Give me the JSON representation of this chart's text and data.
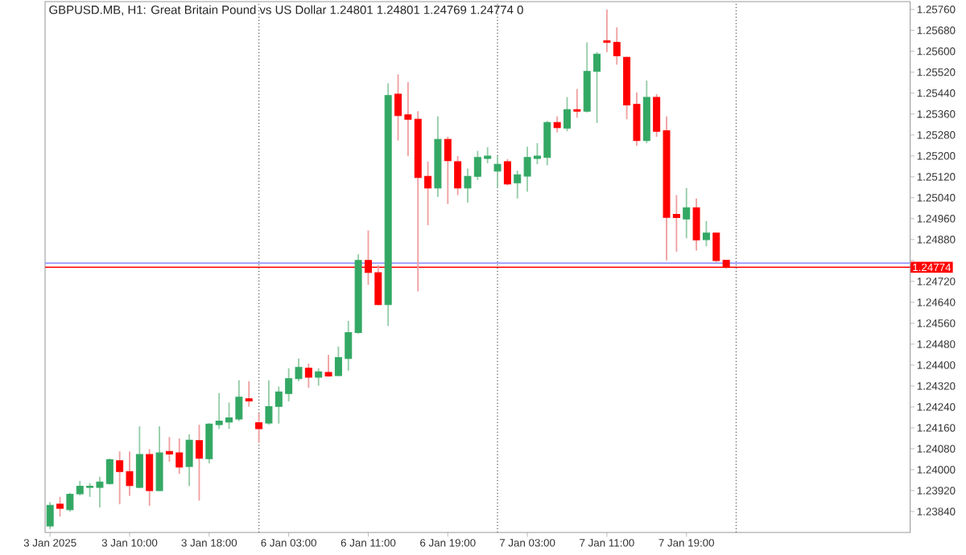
{
  "chart_data": {
    "type": "candlestick",
    "title": "GBPUSD.MB, H1: Great Britain Pound vs US Dollar 1.24801 1.24801 1.24769 1.24774 0",
    "categories": [
      "3 Jan 2025",
      null,
      null,
      null,
      null,
      null,
      null,
      null,
      "3 Jan 10:00",
      null,
      null,
      null,
      null,
      null,
      null,
      null,
      "3 Jan 18:00",
      null,
      null,
      null,
      null,
      null,
      null,
      null,
      "6 Jan 03:00",
      null,
      null,
      null,
      null,
      null,
      null,
      null,
      "6 Jan 11:00",
      null,
      null,
      null,
      null,
      null,
      null,
      null,
      "6 Jan 19:00",
      null,
      null,
      null,
      null,
      null,
      null,
      null,
      "7 Jan 03:00",
      null,
      null,
      null,
      null,
      null,
      null,
      null,
      "7 Jan 11:00",
      null,
      null,
      null,
      null,
      null,
      null,
      null,
      "7 Jan 19:00",
      null,
      null,
      null,
      null,
      null,
      null,
      null,
      null,
      null,
      null,
      null,
      null,
      null,
      null,
      null,
      null,
      null,
      null,
      null,
      null,
      null,
      null
    ],
    "ohlc": [
      [
        1.23785,
        1.23876,
        1.23773,
        1.23864
      ],
      [
        1.23868,
        1.23896,
        1.23821,
        1.23852
      ],
      [
        1.23847,
        1.23912,
        1.2384,
        1.23906
      ],
      [
        1.23908,
        1.23957,
        1.23902,
        1.23937
      ],
      [
        1.23932,
        1.23949,
        1.23896,
        1.23937
      ],
      [
        1.23932,
        1.23973,
        1.23856,
        1.23953
      ],
      [
        1.23947,
        1.24043,
        1.23943,
        1.24038
      ],
      [
        1.24034,
        1.2407,
        1.23868,
        1.23993
      ],
      [
        1.23993,
        1.2407,
        1.239,
        1.23939
      ],
      [
        1.23932,
        1.24166,
        1.23929,
        1.24058
      ],
      [
        1.24058,
        1.24078,
        1.23862,
        1.2392
      ],
      [
        1.2392,
        1.24166,
        1.23919,
        1.24064
      ],
      [
        1.2407,
        1.24125,
        1.2403,
        1.2406
      ],
      [
        1.24064,
        1.24119,
        1.23984,
        1.2401
      ],
      [
        1.24012,
        1.24135,
        1.23937,
        1.24113
      ],
      [
        1.24111,
        1.24172,
        1.23882,
        1.24044
      ],
      [
        1.24042,
        1.24178,
        1.24024,
        1.24174
      ],
      [
        1.24172,
        1.24293,
        1.24156,
        1.24186
      ],
      [
        1.24182,
        1.24257,
        1.24156,
        1.24198
      ],
      [
        1.24194,
        1.24342,
        1.24186,
        1.24277
      ],
      [
        1.24271,
        1.24338,
        1.24241,
        1.24263
      ],
      [
        1.2418,
        1.24216,
        1.24103,
        1.24157
      ],
      [
        1.24178,
        1.24342,
        1.24172,
        1.24241
      ],
      [
        1.24242,
        1.24318,
        1.24176,
        1.24297
      ],
      [
        1.24291,
        1.24388,
        1.24261,
        1.24348
      ],
      [
        1.24348,
        1.24425,
        1.24338,
        1.24391
      ],
      [
        1.24388,
        1.24406,
        1.24313,
        1.24354
      ],
      [
        1.24354,
        1.24388,
        1.24321,
        1.24374
      ],
      [
        1.24372,
        1.24439,
        1.24356,
        1.24358
      ],
      [
        1.2436,
        1.24471,
        1.24358,
        1.24429
      ],
      [
        1.24425,
        1.24569,
        1.24379,
        1.24524
      ],
      [
        1.24524,
        1.24824,
        1.2452,
        1.248
      ],
      [
        1.248,
        1.24915,
        1.24707,
        1.24754
      ],
      [
        1.24753,
        1.24783,
        1.24629,
        1.24631
      ],
      [
        1.24631,
        1.25478,
        1.2455,
        1.25431
      ],
      [
        1.25436,
        1.25512,
        1.25259,
        1.25354
      ],
      [
        1.25357,
        1.25482,
        1.25199,
        1.2534
      ],
      [
        1.2534,
        1.25371,
        1.24682,
        1.25117
      ],
      [
        1.25122,
        1.25178,
        1.24935,
        1.25077
      ],
      [
        1.25077,
        1.25351,
        1.25043,
        1.25263
      ],
      [
        1.25263,
        1.25273,
        1.25016,
        1.25182
      ],
      [
        1.25178,
        1.25199,
        1.2505,
        1.25077
      ],
      [
        1.25077,
        1.25152,
        1.25022,
        1.25122
      ],
      [
        1.25122,
        1.25219,
        1.25108,
        1.25194
      ],
      [
        1.2519,
        1.25233,
        1.25172,
        1.25199
      ],
      [
        1.25142,
        1.25199,
        1.25077,
        1.25168
      ],
      [
        1.25178,
        1.25188,
        1.25087,
        1.25093
      ],
      [
        1.25097,
        1.25144,
        1.25037,
        1.25128
      ],
      [
        1.25123,
        1.25235,
        1.25063,
        1.25194
      ],
      [
        1.2519,
        1.25249,
        1.25168,
        1.25199
      ],
      [
        1.25194,
        1.25334,
        1.25164,
        1.25328
      ],
      [
        1.25328,
        1.25351,
        1.2529,
        1.25308
      ],
      [
        1.25306,
        1.25425,
        1.25294,
        1.25377
      ],
      [
        1.25377,
        1.25456,
        1.25346,
        1.25371
      ],
      [
        1.25371,
        1.25634,
        1.25366,
        1.25523
      ],
      [
        1.25523,
        1.25597,
        1.25326,
        1.25589
      ],
      [
        1.2564,
        1.2576,
        1.25597,
        1.25634
      ],
      [
        1.25634,
        1.25691,
        1.25549,
        1.25583
      ],
      [
        1.25577,
        1.2558,
        1.2534,
        1.25395
      ],
      [
        1.25397,
        1.25442,
        1.25239,
        1.25259
      ],
      [
        1.25259,
        1.25488,
        1.25249,
        1.25424
      ],
      [
        1.25424,
        1.25436,
        1.25273,
        1.25294
      ],
      [
        1.25296,
        1.25351,
        1.248,
        1.24965
      ],
      [
        1.24976,
        1.2505,
        1.24834,
        1.24964
      ],
      [
        1.24959,
        1.25077,
        1.24885,
        1.25002
      ],
      [
        1.25002,
        1.25037,
        1.24838,
        1.24879
      ],
      [
        1.2488,
        1.24951,
        1.24854,
        1.24905
      ],
      [
        1.24905,
        1.24905,
        1.24794,
        1.248
      ],
      [
        1.24801,
        1.24801,
        1.24769,
        1.24774
      ],
      null,
      null,
      null,
      null,
      null,
      null,
      null,
      null,
      null,
      null,
      null,
      null,
      null,
      null,
      null,
      null,
      null,
      null
    ],
    "ylim": [
      1.2376,
      1.2579
    ],
    "grid": "x",
    "yticks": [
      {
        "value": 1.2384,
        "label": "1.23840"
      },
      {
        "value": 1.2392,
        "label": "1.23920"
      },
      {
        "value": 1.24,
        "label": "1.24000"
      },
      {
        "value": 1.2408,
        "label": "1.24080"
      },
      {
        "value": 1.2416,
        "label": "1.24160"
      },
      {
        "value": 1.2424,
        "label": "1.24240"
      },
      {
        "value": 1.2432,
        "label": "1.24320"
      },
      {
        "value": 1.244,
        "label": "1.24400"
      },
      {
        "value": 1.2448,
        "label": "1.24480"
      },
      {
        "value": 1.2456,
        "label": "1.24560"
      },
      {
        "value": 1.2464,
        "label": "1.24640"
      },
      {
        "value": 1.2472,
        "label": "1.24720"
      },
      {
        "value": 1.248,
        "label": null
      },
      {
        "value": 1.2488,
        "label": "1.24880"
      },
      {
        "value": 1.2496,
        "label": "1.24960"
      },
      {
        "value": 1.2504,
        "label": "1.25040"
      },
      {
        "value": 1.2512,
        "label": "1.25120"
      },
      {
        "value": 1.252,
        "label": "1.25200"
      },
      {
        "value": 1.2528,
        "label": "1.25280"
      },
      {
        "value": 1.2536,
        "label": "1.25360"
      },
      {
        "value": 1.2544,
        "label": "1.25440"
      },
      {
        "value": 1.2552,
        "label": "1.25520"
      },
      {
        "value": 1.256,
        "label": "1.25600"
      },
      {
        "value": 1.2568,
        "label": "1.25680"
      },
      {
        "value": 1.2576,
        "label": "1.25760"
      }
    ],
    "ref_lines": [
      {
        "axis": "y",
        "value": 1.2479,
        "color": "#9999ff"
      },
      {
        "axis": "y",
        "value": 1.24774,
        "color": "#ff0000",
        "label": "1.24774"
      }
    ]
  }
}
